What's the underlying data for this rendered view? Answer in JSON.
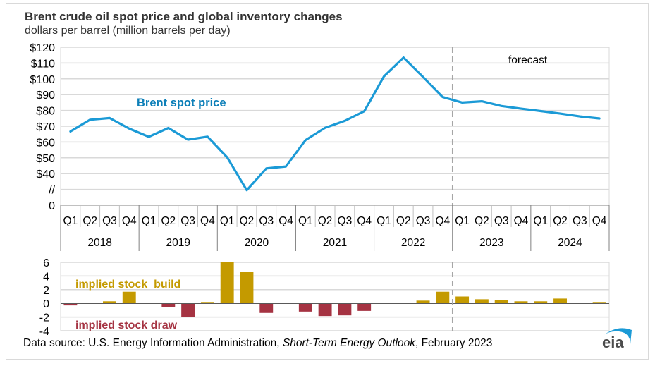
{
  "title": "Brent crude oil spot price and global inventory changes",
  "subtitle": "dollars per barrel (million barrels per day)",
  "source": {
    "prefix": "Data source: U.S. Energy Information Administration, ",
    "publication": "Short-Term Energy Outlook",
    "suffix": ", February 2023"
  },
  "logo_text": "eia",
  "colors": {
    "price_line": "#1b9ad6",
    "build": "#c49a00",
    "draw": "#a53342",
    "grid": "#d9d9d9",
    "forecast_line": "#a6a6a6",
    "label_blue": "#0d7fb8"
  },
  "chart_data": [
    {
      "type": "line",
      "title": "Brent spot price",
      "ylabel": "dollars per barrel",
      "series_label": "Brent spot price",
      "forecast_label": "forecast",
      "forecast_start": "2023 Q1",
      "y_ticks": [
        "$120",
        "$110",
        "$100",
        "$90",
        "$80",
        "$70",
        "$60",
        "$50",
        "$40",
        "//",
        "0"
      ],
      "y_tick_values": [
        120,
        110,
        100,
        90,
        80,
        70,
        60,
        50,
        40,
        30,
        20
      ],
      "y_axis_break": true,
      "ylim": [
        20,
        120
      ],
      "grid": true,
      "quarters": [
        "Q1",
        "Q2",
        "Q3",
        "Q4",
        "Q1",
        "Q2",
        "Q3",
        "Q4",
        "Q1",
        "Q2",
        "Q3",
        "Q4",
        "Q1",
        "Q2",
        "Q3",
        "Q4",
        "Q1",
        "Q2",
        "Q3",
        "Q4",
        "Q1",
        "Q2",
        "Q3",
        "Q4",
        "Q1",
        "Q2",
        "Q3",
        "Q4"
      ],
      "years": [
        "2018",
        "2019",
        "2020",
        "2021",
        "2022",
        "2023",
        "2024"
      ],
      "values": [
        66.7,
        74.1,
        75.2,
        68.5,
        63.3,
        68.9,
        61.5,
        63.4,
        50.3,
        29.5,
        43.3,
        44.5,
        61.2,
        69.0,
        73.4,
        79.5,
        101.5,
        113.5,
        101.2,
        88.5,
        85.0,
        85.8,
        82.8,
        81.1,
        79.6,
        78.0,
        76.2,
        74.9
      ]
    },
    {
      "type": "bar",
      "title": "Implied global inventory changes",
      "ylabel": "million barrels per day",
      "build_label": "implied stock  build",
      "draw_label": "implied stock draw",
      "y_ticks": [
        "6",
        "4",
        "2",
        "0",
        "-2",
        "-4"
      ],
      "y_tick_values": [
        6,
        4,
        2,
        0,
        -2,
        -4
      ],
      "ylim": [
        -4,
        6
      ],
      "grid": true,
      "values": [
        -0.3,
        0.0,
        0.3,
        1.7,
        0.0,
        -0.55,
        -1.95,
        0.2,
        6.0,
        4.6,
        -1.4,
        0.0,
        -1.2,
        -1.85,
        -1.75,
        -1.1,
        0.1,
        0.1,
        0.4,
        1.7,
        1.0,
        0.6,
        0.5,
        0.3,
        0.3,
        0.7,
        0.1,
        0.2
      ]
    }
  ]
}
